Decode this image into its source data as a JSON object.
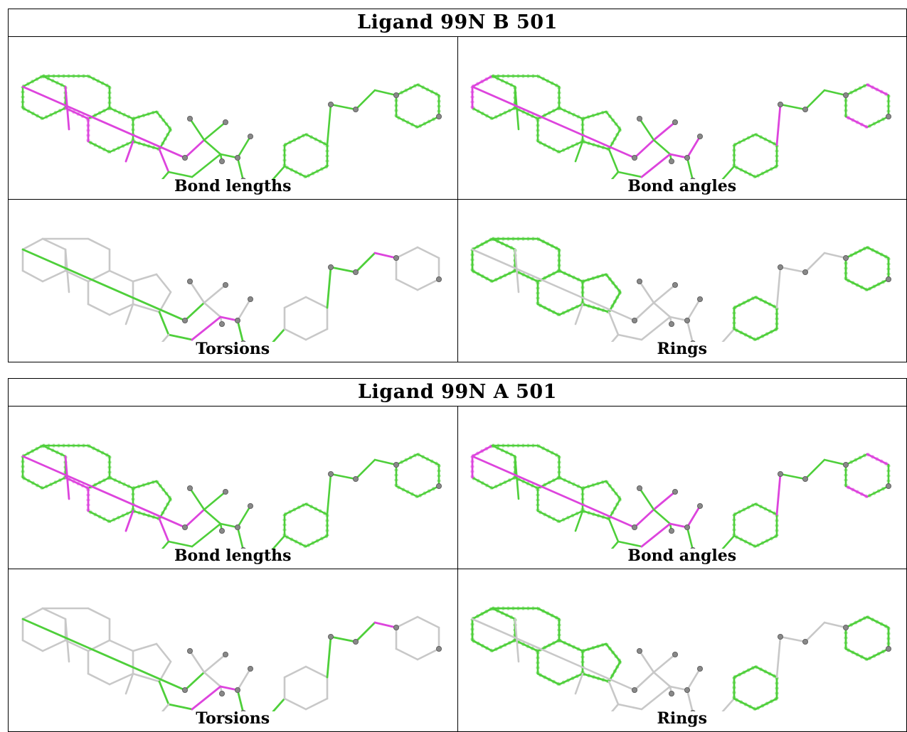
{
  "reports": [
    {
      "title": "Ligand 99N B 501",
      "panels": [
        {
          "caption": "Bond lengths",
          "colors": {
            "base": "#4ecf3a",
            "outliers": "#dd44dd"
          }
        },
        {
          "caption": "Bond angles",
          "colors": {
            "base": "#4ecf3a",
            "outliers": "#dd44dd"
          }
        },
        {
          "caption": "Torsions",
          "colors": {
            "base": "#c8c8c8",
            "outliers": "#dd44dd"
          }
        },
        {
          "caption": "Rings",
          "colors": {
            "base": "#c8c8c8",
            "outliers": "#4ecf3a"
          }
        }
      ]
    },
    {
      "title": "Ligand 99N A 501",
      "panels": [
        {
          "caption": "Bond lengths",
          "colors": {
            "base": "#4ecf3a",
            "outliers": "#dd44dd"
          }
        },
        {
          "caption": "Bond angles",
          "colors": {
            "base": "#4ecf3a",
            "outliers": "#dd44dd"
          }
        },
        {
          "caption": "Torsions",
          "colors": {
            "base": "#c8c8c8",
            "outliers": "#dd44dd"
          }
        },
        {
          "caption": "Rings",
          "colors": {
            "base": "#c8c8c8",
            "outliers": "#4ecf3a"
          }
        }
      ]
    }
  ]
}
